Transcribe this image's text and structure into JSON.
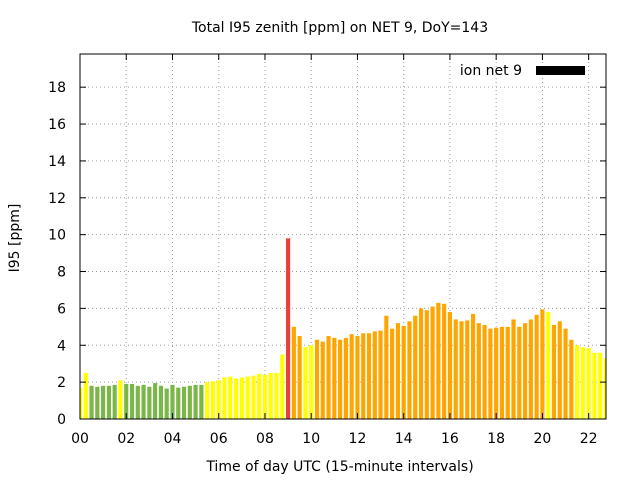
{
  "chart_data": {
    "type": "bar",
    "title": "Total I95 zenith [ppm] on NET 9, DoY=143",
    "xlabel": "Time of day UTC (15-minute intervals)",
    "ylabel": "I95 [ppm]",
    "ylim": [
      0,
      19.8
    ],
    "yticks": [
      "0",
      "2",
      "4",
      "6",
      "8",
      "10",
      "12",
      "14",
      "16",
      "18"
    ],
    "xticks": [
      "00",
      "02",
      "04",
      "06",
      "08",
      "10",
      "12",
      "14",
      "16",
      "18",
      "20",
      "22"
    ],
    "xlim_hours": [
      0,
      22.75
    ],
    "bar_interval_hours": 0.25,
    "grid": true,
    "legend": {
      "label": "ion net 9",
      "color": "#000000",
      "position": "top-right"
    },
    "level_colors": {
      "low": "#7ab648",
      "moderate": "#ffff00",
      "elevated": "#ffa500",
      "high": "#e8403a"
    },
    "values": [
      1.7,
      2.5,
      1.8,
      1.75,
      1.8,
      1.8,
      1.85,
      2.1,
      1.9,
      1.9,
      1.8,
      1.85,
      1.75,
      1.95,
      1.8,
      1.65,
      1.85,
      1.7,
      1.75,
      1.8,
      1.85,
      1.85,
      2.0,
      2.05,
      2.1,
      2.25,
      2.3,
      2.2,
      2.25,
      2.3,
      2.35,
      2.45,
      2.4,
      2.5,
      2.5,
      3.5,
      9.8,
      5.0,
      4.5,
      3.9,
      4.0,
      4.3,
      4.2,
      4.5,
      4.4,
      4.3,
      4.4,
      4.6,
      4.5,
      4.65,
      4.65,
      4.75,
      4.8,
      5.6,
      4.9,
      5.2,
      5.05,
      5.3,
      5.6,
      6.0,
      5.9,
      6.1,
      6.3,
      6.25,
      5.8,
      5.4,
      5.3,
      5.35,
      5.7,
      5.2,
      5.1,
      4.9,
      4.95,
      5.0,
      5.0,
      5.4,
      5.0,
      5.2,
      5.4,
      5.65,
      5.95,
      5.8,
      5.1,
      5.3,
      4.9,
      4.3,
      4.0,
      3.9,
      3.85,
      3.6,
      3.6,
      3.3
    ],
    "levels": [
      "moderate",
      "moderate",
      "low",
      "low",
      "low",
      "low",
      "low",
      "moderate",
      "low",
      "low",
      "low",
      "low",
      "low",
      "low",
      "low",
      "low",
      "low",
      "low",
      "low",
      "low",
      "low",
      "low",
      "moderate",
      "moderate",
      "moderate",
      "moderate",
      "moderate",
      "moderate",
      "moderate",
      "moderate",
      "moderate",
      "moderate",
      "moderate",
      "moderate",
      "moderate",
      "moderate",
      "high",
      "elevated",
      "elevated",
      "moderate",
      "moderate",
      "elevated",
      "elevated",
      "elevated",
      "elevated",
      "elevated",
      "elevated",
      "elevated",
      "elevated",
      "elevated",
      "elevated",
      "elevated",
      "elevated",
      "elevated",
      "elevated",
      "elevated",
      "elevated",
      "elevated",
      "elevated",
      "elevated",
      "elevated",
      "elevated",
      "elevated",
      "elevated",
      "elevated",
      "elevated",
      "elevated",
      "elevated",
      "elevated",
      "elevated",
      "elevated",
      "elevated",
      "elevated",
      "elevated",
      "elevated",
      "elevated",
      "elevated",
      "elevated",
      "elevated",
      "elevated",
      "elevated",
      "moderate",
      "elevated",
      "elevated",
      "elevated",
      "elevated",
      "moderate",
      "moderate",
      "moderate",
      "moderate",
      "moderate",
      "moderate"
    ]
  }
}
